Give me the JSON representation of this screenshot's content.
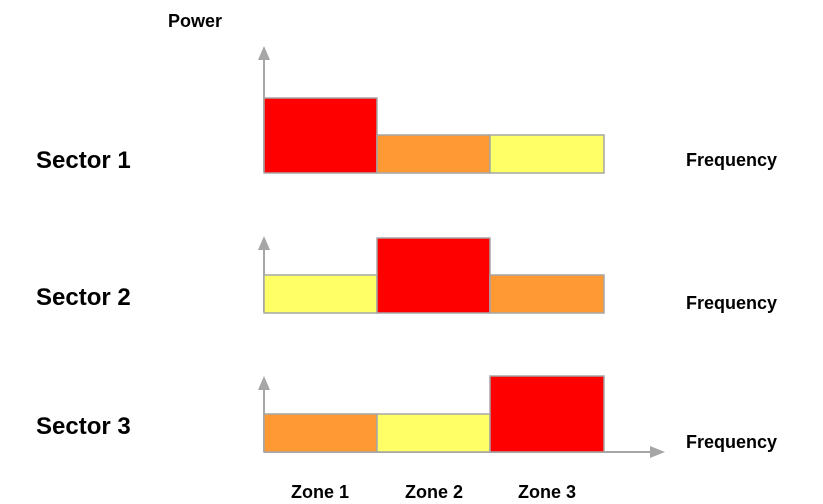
{
  "power_label": "Power",
  "frequency_label": "Frequency",
  "zones": [
    "Zone 1",
    "Zone 2",
    "Zone 3"
  ],
  "colors": {
    "high": "#ff0000",
    "medium": "#ff9933",
    "low": "#ffff66",
    "axis": "#a6a6a6"
  },
  "sectors": [
    {
      "label": "Sector 1",
      "levels": [
        "high",
        "medium",
        "low"
      ]
    },
    {
      "label": "Sector 2",
      "levels": [
        "low",
        "high",
        "medium"
      ]
    },
    {
      "label": "Sector 3",
      "levels": [
        "medium",
        "low",
        "high"
      ]
    }
  ]
}
